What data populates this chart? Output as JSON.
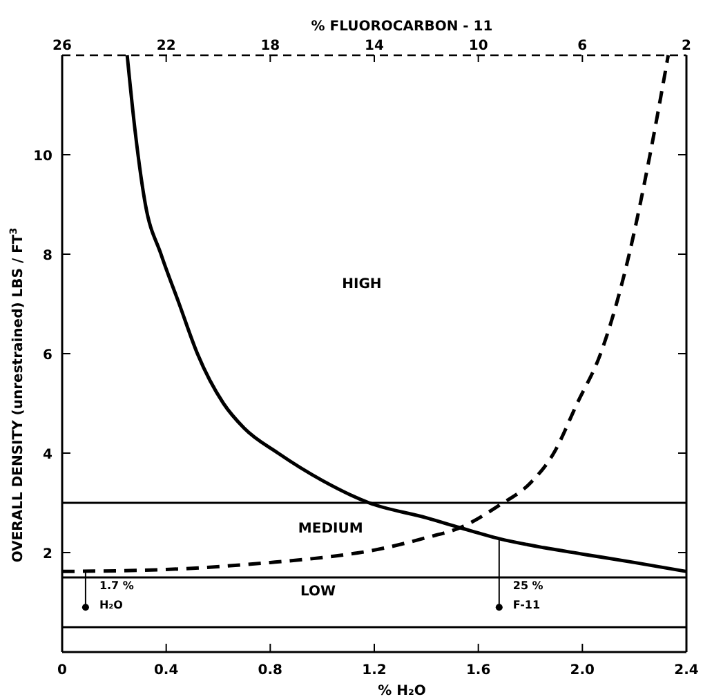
{
  "chart_data": {
    "type": "line",
    "xlabel": "% H₂O",
    "ylabel": "OVERALL DENSITY (unrestrained) LBS / FT$^{3}$",
    "x2label": "% FLUOROCARBON - 11",
    "xlim": [
      0,
      2.4
    ],
    "xticks": [
      0,
      0.4,
      0.8,
      1.2,
      1.6,
      {
        "value": 2,
        "label": "2.0"
      },
      2.4
    ],
    "x2lim": [
      26,
      2
    ],
    "x2ticks": [
      26,
      22,
      18,
      14,
      10,
      6,
      2
    ],
    "ylim": [
      0,
      12
    ],
    "yticks": [
      2,
      4,
      6,
      8,
      10
    ],
    "grid": false,
    "marker": "none",
    "series": [
      {
        "color": "#000000",
        "line_style": "solid",
        "x": [
          0.25,
          0.28,
          0.32,
          0.38,
          0.45,
          0.52,
          0.62,
          0.7,
          0.83,
          1.0,
          1.18,
          1.4,
          1.53,
          1.68,
          1.85,
          2.0,
          2.2,
          2.4
        ],
        "values": [
          12,
          10.5,
          9,
          8,
          7,
          6,
          5,
          4.5,
          4,
          3.45,
          3.0,
          2.7,
          2.5,
          2.28,
          2.1,
          1.97,
          1.8,
          1.62
        ]
      },
      {
        "color": "#000000",
        "line_style": "dashed",
        "x": [
          0,
          0.4,
          0.8,
          1.0,
          1.2,
          1.4,
          1.53,
          1.68,
          1.8,
          1.89,
          1.98,
          2.07,
          2.18,
          2.26,
          2.33
        ],
        "values": [
          1.62,
          1.66,
          1.8,
          1.9,
          2.05,
          2.3,
          2.5,
          2.95,
          3.4,
          4,
          5,
          6,
          8,
          10,
          12
        ]
      }
    ],
    "ref_lines": [
      {
        "axis": "y",
        "value": 3,
        "color": "#000000"
      },
      {
        "axis": "y",
        "value": 1.5,
        "color": "#000000"
      },
      {
        "axis": "y",
        "value": 0.5,
        "color": "#000000"
      }
    ],
    "annotations": [
      "HIGH",
      "MEDIUM",
      "LOW",
      {
        "text": "1.7 %\nH₂O",
        "x": 0.09,
        "y": 0.9
      },
      {
        "text": "25 %\nF-11",
        "x": 1.68,
        "y": 0.9
      }
    ]
  }
}
